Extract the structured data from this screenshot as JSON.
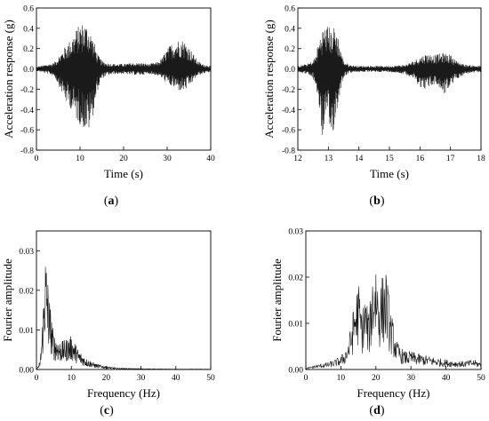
{
  "chart_data": [
    {
      "type": "line",
      "panel_label": "a",
      "xlabel": "Time (s)",
      "ylabel": "Acceleration response (g)",
      "xlim": [
        0,
        40
      ],
      "ylim": [
        -0.8,
        0.6
      ],
      "xticks": [
        0,
        10,
        20,
        30,
        40
      ],
      "yticks": [
        -0.8,
        -0.6,
        -0.4,
        -0.2,
        0.0,
        0.2,
        0.4,
        0.6
      ],
      "ytick_labels": [
        "-0.8",
        "-0.6",
        "-0.4",
        "-0.2",
        "0.0",
        "0.2",
        "0.4",
        "0.6"
      ],
      "grid": false,
      "envelope": {
        "x": [
          0,
          2,
          4,
          5,
          6,
          7,
          8,
          9,
          10,
          11,
          12,
          13,
          14,
          15,
          16,
          18,
          20,
          22,
          24,
          26,
          28,
          29,
          30,
          31,
          32,
          33,
          34,
          35,
          36,
          37,
          38,
          40
        ],
        "max": [
          0.02,
          0.04,
          0.06,
          0.12,
          0.18,
          0.25,
          0.3,
          0.38,
          0.45,
          0.46,
          0.42,
          0.3,
          0.15,
          0.08,
          0.06,
          0.05,
          0.05,
          0.06,
          0.06,
          0.05,
          0.07,
          0.12,
          0.2,
          0.25,
          0.28,
          0.3,
          0.28,
          0.22,
          0.15,
          0.08,
          0.05,
          0.03
        ],
        "min": [
          -0.02,
          -0.04,
          -0.07,
          -0.15,
          -0.25,
          -0.35,
          -0.4,
          -0.5,
          -0.55,
          -0.6,
          -0.62,
          -0.45,
          -0.22,
          -0.1,
          -0.07,
          -0.05,
          -0.05,
          -0.06,
          -0.06,
          -0.05,
          -0.07,
          -0.1,
          -0.15,
          -0.18,
          -0.2,
          -0.22,
          -0.22,
          -0.18,
          -0.12,
          -0.07,
          -0.05,
          -0.03
        ]
      }
    },
    {
      "type": "line",
      "panel_label": "b",
      "xlabel": "Time (s)",
      "ylabel": "Acceleration response (g)",
      "xlim": [
        12,
        18
      ],
      "ylim": [
        -0.8,
        0.6
      ],
      "xticks": [
        12,
        13,
        14,
        15,
        16,
        17,
        18
      ],
      "yticks": [
        -0.8,
        -0.6,
        -0.4,
        -0.2,
        0.0,
        0.2,
        0.4,
        0.6
      ],
      "ytick_labels": [
        "-0.8",
        "-0.6",
        "-0.4",
        "-0.2",
        "0.0",
        "0.2",
        "0.4",
        "0.6"
      ],
      "grid": false,
      "envelope": {
        "x": [
          12,
          12.3,
          12.5,
          12.6,
          12.7,
          12.8,
          12.9,
          13.0,
          13.1,
          13.2,
          13.3,
          13.4,
          13.5,
          13.7,
          14,
          14.5,
          15,
          15.5,
          15.8,
          16.0,
          16.2,
          16.5,
          16.8,
          17.0,
          17.2,
          17.5,
          18
        ],
        "max": [
          0.03,
          0.05,
          0.08,
          0.15,
          0.3,
          0.4,
          0.42,
          0.44,
          0.38,
          0.43,
          0.35,
          0.2,
          0.08,
          0.04,
          0.03,
          0.03,
          0.03,
          0.04,
          0.08,
          0.12,
          0.15,
          0.14,
          0.16,
          0.14,
          0.08,
          0.04,
          0.03
        ],
        "min": [
          -0.03,
          -0.05,
          -0.1,
          -0.2,
          -0.4,
          -0.7,
          -0.5,
          -0.6,
          -0.72,
          -0.55,
          -0.4,
          -0.2,
          -0.08,
          -0.04,
          -0.03,
          -0.03,
          -0.03,
          -0.05,
          -0.1,
          -0.18,
          -0.2,
          -0.15,
          -0.25,
          -0.18,
          -0.1,
          -0.05,
          -0.03
        ]
      }
    },
    {
      "type": "line",
      "panel_label": "c",
      "xlabel": "Frequency (Hz)",
      "ylabel": "Fourier amplitude",
      "xlim": [
        0,
        50
      ],
      "ylim": [
        0,
        0.035
      ],
      "xticks": [
        0,
        10,
        20,
        30,
        40,
        50
      ],
      "yticks": [
        0,
        0.01,
        0.02,
        0.03
      ],
      "ytick_labels": [
        "0.00",
        "0.01",
        "0.02",
        "0.03"
      ],
      "grid": false,
      "spectrum": {
        "x": [
          0,
          1,
          1.5,
          2,
          2.5,
          3,
          3.5,
          4,
          4.5,
          5,
          6,
          7,
          8,
          9,
          10,
          11,
          12,
          13,
          14,
          15,
          17,
          20,
          23,
          26,
          30,
          40,
          50
        ],
        "max": [
          0.0,
          0.002,
          0.008,
          0.018,
          0.03,
          0.027,
          0.02,
          0.016,
          0.012,
          0.009,
          0.008,
          0.007,
          0.0075,
          0.008,
          0.0085,
          0.007,
          0.005,
          0.004,
          0.003,
          0.0025,
          0.0015,
          0.0008,
          0.0004,
          0.0003,
          0.0002,
          0.0001,
          0.0001
        ]
      }
    },
    {
      "type": "line",
      "panel_label": "d",
      "xlabel": "Frequency (Hz)",
      "ylabel": "Fourier amplitude",
      "xlim": [
        0,
        50
      ],
      "ylim": [
        0,
        0.03
      ],
      "xticks": [
        0,
        10,
        20,
        30,
        40,
        50
      ],
      "yticks": [
        0,
        0.01,
        0.02,
        0.03
      ],
      "ytick_labels": [
        "0.00",
        "0.01",
        "0.02",
        "0.03"
      ],
      "grid": false,
      "spectrum": {
        "x": [
          0,
          2,
          4,
          6,
          8,
          10,
          11,
          12,
          13,
          14,
          15,
          16,
          17,
          18,
          19,
          20,
          21,
          22,
          23,
          24,
          25,
          26,
          27,
          28,
          30,
          32,
          35,
          38,
          40,
          42,
          45,
          48,
          50
        ],
        "max": [
          0.0003,
          0.0008,
          0.0012,
          0.0015,
          0.002,
          0.003,
          0.004,
          0.006,
          0.01,
          0.016,
          0.0195,
          0.013,
          0.017,
          0.012,
          0.022,
          0.025,
          0.018,
          0.021,
          0.022,
          0.014,
          0.01,
          0.006,
          0.005,
          0.004,
          0.004,
          0.0035,
          0.003,
          0.0025,
          0.0022,
          0.002,
          0.0018,
          0.0022,
          0.0015
        ]
      }
    }
  ]
}
